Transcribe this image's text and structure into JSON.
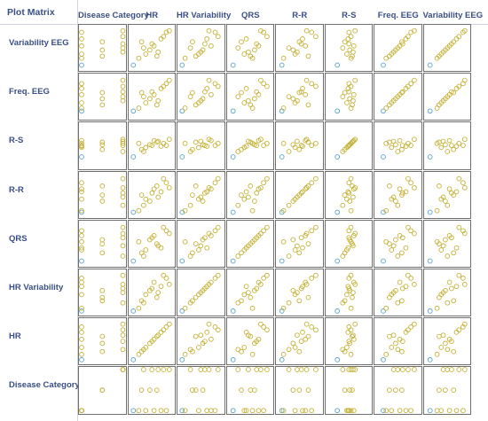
{
  "title": "Plot Matrix",
  "columns": [
    "Disease Category",
    "HR",
    "HR Variability",
    "QRS",
    "R-R",
    "R-S",
    "Freq. EEG",
    "Variability EEG"
  ],
  "rows": [
    "Variability EEG",
    "Freq. EEG",
    "R-S",
    "R-R",
    "QRS",
    "HR Variability",
    "HR",
    "Disease Category"
  ],
  "colors": {
    "point_main": "#c4b238",
    "point_alt": "#5aa4c8",
    "border": "#6f6f6f",
    "label": "#3a4f85"
  },
  "chart_data": {
    "type": "scatter",
    "variables": [
      "Disease Category",
      "HR",
      "HR Variability",
      "QRS",
      "R-R",
      "R-S",
      "Freq. EEG",
      "Variability EEG"
    ],
    "observations": [
      {
        "Disease Category": 0,
        "HR": 0.05,
        "HR Variability": 0.05,
        "QRS": 0.08,
        "R-R": 0.08,
        "R-S": 0.22,
        "Freq. EEG": 0.15,
        "Variability EEG": 0.08,
        "class": "alt"
      },
      {
        "Disease Category": 0,
        "HR": 0.18,
        "HR Variability": 0.12,
        "QRS": 0.55,
        "R-R": 0.12,
        "R-S": 0.55,
        "Freq. EEG": 0.22,
        "Variability EEG": 0.25
      },
      {
        "Disease Category": 0,
        "HR": 0.35,
        "HR Variability": 0.45,
        "QRS": 0.35,
        "R-R": 0.4,
        "R-S": 0.45,
        "Freq. EEG": 0.35,
        "Variability EEG": 0.35
      },
      {
        "Disease Category": 0,
        "HR": 0.55,
        "HR Variability": 0.75,
        "QRS": 0.7,
        "R-R": 0.65,
        "R-S": 0.62,
        "Freq. EEG": 0.55,
        "Variability EEG": 0.55
      },
      {
        "Disease Category": 0,
        "HR": 0.72,
        "HR Variability": 0.65,
        "QRS": 0.4,
        "R-R": 0.58,
        "R-S": 0.48,
        "Freq. EEG": 0.7,
        "Variability EEG": 0.72
      },
      {
        "Disease Category": 0,
        "HR": 0.85,
        "HR Variability": 0.85,
        "QRS": 0.82,
        "R-R": 0.8,
        "R-S": 0.5,
        "Freq. EEG": 0.82,
        "Variability EEG": 0.88
      },
      {
        "Disease Category": 0.5,
        "HR": 0.25,
        "HR Variability": 0.3,
        "QRS": 0.28,
        "R-R": 0.5,
        "R-S": 0.4,
        "Freq. EEG": 0.6,
        "Variability EEG": 0.65
      },
      {
        "Disease Category": 0.5,
        "HR": 0.45,
        "HR Variability": 0.55,
        "QRS": 0.6,
        "R-R": 0.35,
        "R-S": 0.52,
        "Freq. EEG": 0.45,
        "Variability EEG": 0.45
      },
      {
        "Disease Category": 0.5,
        "HR": 0.62,
        "HR Variability": 0.38,
        "QRS": 0.5,
        "R-R": 0.72,
        "R-S": 0.58,
        "Freq. EEG": 0.3,
        "Variability EEG": 0.3
      },
      {
        "Disease Category": 1,
        "HR": 0.3,
        "HR Variability": 0.25,
        "QRS": 0.2,
        "R-R": 0.25,
        "R-S": 0.35,
        "Freq. EEG": 0.5,
        "Variability EEG": 0.5
      },
      {
        "Disease Category": 1,
        "HR": 0.5,
        "HR Variability": 0.6,
        "QRS": 0.65,
        "R-R": 0.55,
        "R-S": 0.5,
        "Freq. EEG": 0.62,
        "Variability EEG": 0.6
      },
      {
        "Disease Category": 1,
        "HR": 0.65,
        "HR Variability": 0.5,
        "QRS": 0.45,
        "R-R": 0.45,
        "R-S": 0.6,
        "Freq. EEG": 0.4,
        "Variability EEG": 0.4
      },
      {
        "Disease Category": 1,
        "HR": 0.78,
        "HR Variability": 0.92,
        "QRS": 0.9,
        "R-R": 0.9,
        "R-S": 0.55,
        "Freq. EEG": 0.75,
        "Variability EEG": 0.78
      },
      {
        "Disease Category": 1,
        "HR": 0.92,
        "HR Variability": 0.7,
        "QRS": 0.75,
        "R-R": 0.68,
        "R-S": 0.65,
        "Freq. EEG": 0.9,
        "Variability EEG": 0.92
      }
    ]
  }
}
